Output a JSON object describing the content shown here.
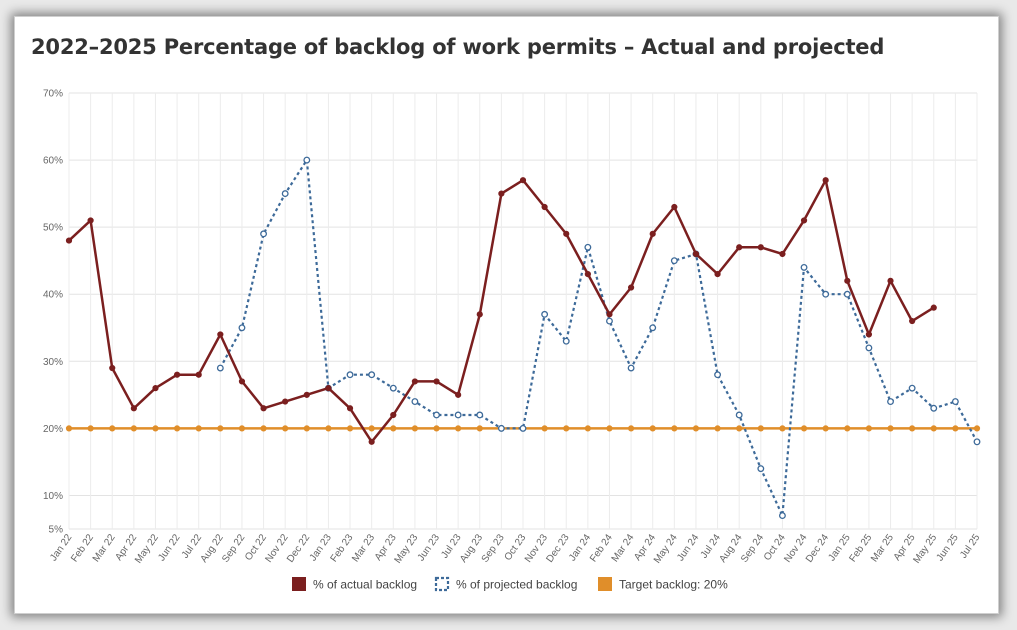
{
  "chart_data": {
    "type": "line",
    "title": "2022–2025 Percentage of backlog of work permits – Actual and projected",
    "xlabel": "",
    "ylabel": "",
    "y_ticks": [
      {
        "value": 70,
        "label": "70%"
      },
      {
        "value": 60,
        "label": "60%"
      },
      {
        "value": 50,
        "label": "50%"
      },
      {
        "value": 40,
        "label": "40%"
      },
      {
        "value": 30,
        "label": "30%"
      },
      {
        "value": 20,
        "label": "20%"
      },
      {
        "value": 10,
        "label": "10%"
      },
      {
        "value": 5,
        "label": "5%"
      }
    ],
    "ylim": [
      5,
      70
    ],
    "grid": true,
    "legend_position": "bottom",
    "categories": [
      "Jan 22",
      "Feb 22",
      "Mar 22",
      "Apr 22",
      "May 22",
      "Jun 22",
      "Jul 22",
      "Aug 22",
      "Sep 22",
      "Oct 22",
      "Nov 22",
      "Dec 22",
      "Jan 23",
      "Feb 23",
      "Mar 23",
      "Apr 23",
      "May 23",
      "Jun 23",
      "Jul 23",
      "Aug 23",
      "Sep 23",
      "Oct 23",
      "Nov 23",
      "Dec 23",
      "Jan 24",
      "Feb 24",
      "Mar 24",
      "Apr 24",
      "May 24",
      "Jun 24",
      "Jul 24",
      "Aug 24",
      "Sep 24",
      "Oct 24",
      "Nov 24",
      "Dec 24",
      "Jan 25",
      "Feb 25",
      "Mar 25",
      "Apr 25",
      "May 25",
      "Jun 25",
      "Jul 25"
    ],
    "series": [
      {
        "name": "% of actual backlog",
        "color": "#7b1f1f",
        "style": "solid",
        "values": [
          48,
          51,
          29,
          23,
          26,
          28,
          28,
          34,
          27,
          23,
          24,
          25,
          26,
          23,
          18,
          22,
          27,
          27,
          25,
          37,
          55,
          57,
          53,
          49,
          43,
          37,
          41,
          49,
          53,
          46,
          43,
          47,
          47,
          46,
          51,
          57,
          42,
          34,
          42,
          36,
          38,
          null,
          null
        ]
      },
      {
        "name": "% of projected backlog",
        "color": "#3d6a99",
        "style": "dotted",
        "values": [
          null,
          null,
          null,
          null,
          null,
          null,
          null,
          29,
          35,
          49,
          55,
          60,
          26,
          28,
          28,
          26,
          24,
          22,
          22,
          22,
          20,
          20,
          37,
          33,
          47,
          36,
          29,
          35,
          45,
          46,
          28,
          22,
          14,
          7,
          44,
          40,
          40,
          32,
          24,
          26,
          23,
          24,
          18
        ]
      },
      {
        "name": "Target backlog: 20%",
        "color": "#e08e2a",
        "style": "solid",
        "values": [
          20,
          20,
          20,
          20,
          20,
          20,
          20,
          20,
          20,
          20,
          20,
          20,
          20,
          20,
          20,
          20,
          20,
          20,
          20,
          20,
          20,
          20,
          20,
          20,
          20,
          20,
          20,
          20,
          20,
          20,
          20,
          20,
          20,
          20,
          20,
          20,
          20,
          20,
          20,
          20,
          20,
          20,
          20
        ]
      }
    ]
  }
}
